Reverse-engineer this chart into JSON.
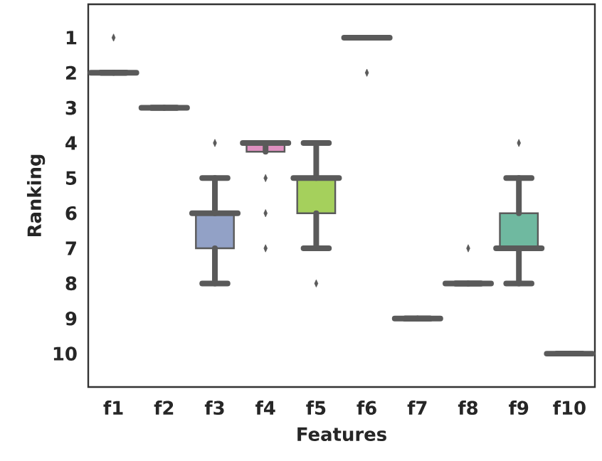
{
  "chart_data": {
    "type": "box",
    "xlabel": "Features",
    "ylabel": "Ranking",
    "categories": [
      "f1",
      "f2",
      "f3",
      "f4",
      "f5",
      "f6",
      "f7",
      "f8",
      "f9",
      "f10"
    ],
    "colors": [
      "#5a5a5a",
      "#5a5a5a",
      "#92a1c6",
      "#df90c0",
      "#a5d05c",
      "#5a5a5a",
      "#5a5a5a",
      "#5a5a5a",
      "#6fb9a0",
      "#5a5a5a"
    ],
    "boxes": [
      {
        "low": 2,
        "q1": 2,
        "median": 2,
        "q3": 2,
        "high": 2,
        "outliers": [
          1
        ]
      },
      {
        "low": 3,
        "q1": 3,
        "median": 3,
        "q3": 3,
        "high": 3
      },
      {
        "low": 5,
        "q1": 6,
        "median": 6,
        "q3": 7,
        "high": 8,
        "outliers": [
          4
        ]
      },
      {
        "low": 4,
        "q1": 4,
        "median": 4,
        "q3": 4.25,
        "high": 4,
        "outliers": [
          5,
          6,
          7
        ]
      },
      {
        "low": 4,
        "q1": 5,
        "median": 5,
        "q3": 6,
        "high": 7,
        "outliers": [
          8
        ]
      },
      {
        "low": 1,
        "q1": 1,
        "median": 1,
        "q3": 1,
        "high": 1,
        "outliers": [
          2
        ]
      },
      {
        "low": 9,
        "q1": 9,
        "median": 9,
        "q3": 9,
        "high": 9
      },
      {
        "low": 8,
        "q1": 8,
        "median": 8,
        "q3": 8,
        "high": 8,
        "outliers": [
          7
        ]
      },
      {
        "low": 5,
        "q1": 6,
        "median": 7,
        "q3": 7,
        "high": 8,
        "outliers": [
          4
        ]
      },
      {
        "low": 10,
        "q1": 10,
        "median": 10,
        "q3": 10,
        "high": 10
      }
    ],
    "ylim": [
      10.95,
      0.05
    ],
    "yticks": [
      1,
      2,
      3,
      4,
      5,
      6,
      7,
      8,
      9,
      10
    ]
  }
}
